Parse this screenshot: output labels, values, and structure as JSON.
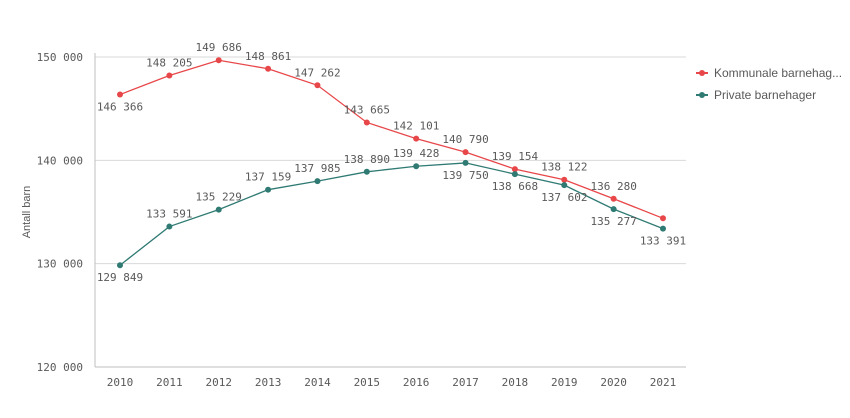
{
  "chart_data": {
    "type": "line",
    "ylabel": "Antall barn",
    "xlabel": "",
    "x": [
      "2010",
      "2011",
      "2012",
      "2013",
      "2014",
      "2015",
      "2016",
      "2017",
      "2018",
      "2019",
      "2020",
      "2021"
    ],
    "ylim": [
      120000,
      150000
    ],
    "yticks": [
      120000,
      130000,
      140000,
      150000
    ],
    "ytick_labels": [
      "120 000",
      "130 000",
      "140 000",
      "150 000"
    ],
    "grid": true,
    "legend_position": "right",
    "series": [
      {
        "name": "Kommunale barnehag...",
        "color": "#e8474a",
        "values": [
          146366,
          148205,
          149686,
          148861,
          147262,
          143665,
          142101,
          140790,
          139154,
          138122,
          136280,
          134390
        ],
        "labels": [
          "146 366",
          "148 205",
          "149 686",
          "148 861",
          "147 262",
          "143 665",
          "142 101",
          "140 790",
          "139 154",
          "138 122",
          "136 280",
          ""
        ]
      },
      {
        "name": "Private barnehager",
        "color": "#2f7a73",
        "values": [
          129849,
          133591,
          135229,
          137159,
          137985,
          138890,
          139428,
          139750,
          138668,
          137602,
          135277,
          133391
        ],
        "labels": [
          "129 849",
          "133 591",
          "135 229",
          "137 159",
          "137 985",
          "138 890",
          "139 428",
          "139 750",
          "138 668",
          "137 602",
          "135 277",
          "133 391"
        ]
      }
    ]
  }
}
